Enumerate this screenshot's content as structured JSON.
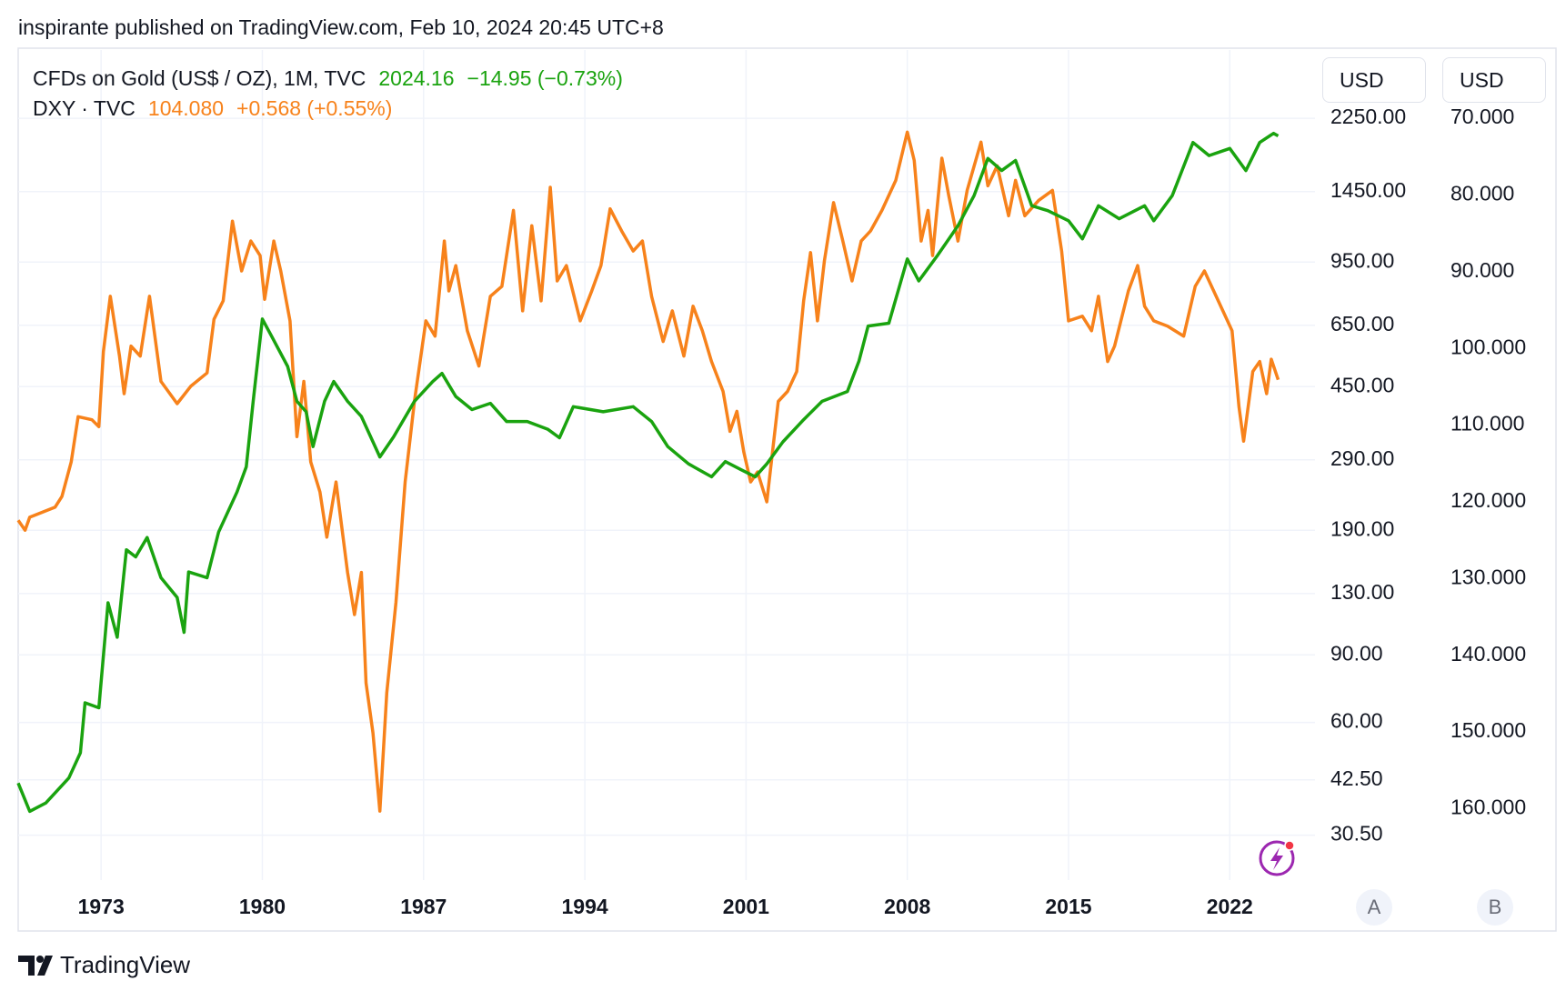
{
  "header": "inspirante published on TradingView.com, Feb 10, 2024 20:45 UTC+8",
  "footer_brand": "TradingView",
  "chart_data": {
    "type": "line",
    "xlim": [
      1969.4,
      2025.7
    ],
    "xticks": [
      1973,
      1980,
      1987,
      1994,
      2001,
      2008,
      2015,
      2022
    ],
    "ylim": [
      23.3,
      3390
    ],
    "log_y": true,
    "yunit": "USD",
    "ybutton": "A",
    "yticks": [
      {
        "value": 2250,
        "label": "2250.00"
      },
      {
        "value": 1450,
        "label": "1450.00"
      },
      {
        "value": 950,
        "label": "950.00"
      },
      {
        "value": 650,
        "label": "650.00"
      },
      {
        "value": 450,
        "label": "450.00"
      },
      {
        "value": 290,
        "label": "290.00"
      },
      {
        "value": 190,
        "label": "190.00"
      },
      {
        "value": 130,
        "label": "130.00"
      },
      {
        "value": 90,
        "label": "90.00"
      },
      {
        "value": 60,
        "label": "60.00"
      },
      {
        "value": 42.5,
        "label": "42.50"
      },
      {
        "value": 30.5,
        "label": "30.50"
      }
    ],
    "y2lim": [
      61.1,
      169.3
    ],
    "y2_inverted": true,
    "y2unit": "USD",
    "y2button": "B",
    "y2ticks": [
      {
        "value": 70,
        "label": "70.000"
      },
      {
        "value": 80,
        "label": "80.000"
      },
      {
        "value": 90,
        "label": "90.000"
      },
      {
        "value": 100,
        "label": "100.000"
      },
      {
        "value": 110,
        "label": "110.000"
      },
      {
        "value": 120,
        "label": "120.000"
      },
      {
        "value": 130,
        "label": "130.000"
      },
      {
        "value": 140,
        "label": "140.000"
      },
      {
        "value": 150,
        "label": "150.000"
      },
      {
        "value": 160,
        "label": "160.000"
      }
    ],
    "grid": true,
    "series": [
      {
        "name": "CFDs on Gold (US$ / OZ), 1M, TVC",
        "last_label": "2024.16",
        "change_label": "−14.95 (−0.73%)",
        "color": "#1aa30f",
        "x": [
          1969.4,
          1969.9,
          1970.6,
          1971.6,
          1972.1,
          1972.3,
          1972.9,
          1973.3,
          1973.7,
          1974.1,
          1974.5,
          1975.0,
          1975.6,
          1976.3,
          1976.6,
          1976.8,
          1977.6,
          1978.1,
          1978.9,
          1979.3,
          1979.6,
          1980.0,
          1980.4,
          1981.1,
          1981.5,
          1981.9,
          1982.2,
          1982.7,
          1983.1,
          1983.7,
          1984.3,
          1985.1,
          1985.7,
          1986.6,
          1987.4,
          1987.8,
          1988.4,
          1989.1,
          1989.9,
          1990.6,
          1991.5,
          1992.4,
          1992.9,
          1993.5,
          1994.8,
          1996.1,
          1996.9,
          1997.6,
          1998.5,
          1999.5,
          2000.1,
          2000.8,
          2001.4,
          2001.9,
          2002.6,
          2003.5,
          2004.3,
          2005.4,
          2005.9,
          2006.3,
          2007.2,
          2008.0,
          2008.5,
          2009.3,
          2010.2,
          2010.9,
          2011.5,
          2012.1,
          2012.7,
          2013.4,
          2014.1,
          2015.0,
          2015.6,
          2016.3,
          2017.2,
          2018.3,
          2018.7,
          2019.5,
          2020.4,
          2021.1,
          2022.0,
          2022.7,
          2023.3,
          2023.9,
          2024.1
        ],
        "values": [
          41.7,
          35.2,
          37.0,
          43.0,
          50.0,
          67.5,
          65.5,
          123,
          100,
          169,
          162,
          182,
          143,
          127,
          103,
          148,
          143,
          188,
          239,
          278,
          412,
          675,
          609,
          508,
          412,
          387,
          314,
          412,
          464,
          412,
          376,
          295,
          333,
          412,
          464,
          487,
          424,
          392,
          407,
          365,
          365,
          348,
          331,
          399,
          387,
          399,
          365,
          314,
          283,
          262,
          287,
          273,
          262,
          283,
          323,
          369,
          412,
          437,
          524,
          647,
          658,
          968,
          848,
          986,
          1181,
          1415,
          1768,
          1645,
          1747,
          1332,
          1293,
          1217,
          1092,
          1332,
          1232,
          1332,
          1217,
          1415,
          1947,
          1800,
          1878,
          1645,
          1947,
          2056,
          2024.16
        ]
      },
      {
        "name": "DXY · TVC",
        "last_label": "104.080",
        "change_label": "+0.568 (+0.55%)",
        "color": "#f7821b",
        "axis": "y2",
        "x": [
          1969.4,
          1969.7,
          1969.9,
          1971.0,
          1971.3,
          1971.7,
          1972.0,
          1972.6,
          1972.9,
          1973.1,
          1973.4,
          1973.8,
          1974.0,
          1974.3,
          1974.7,
          1975.1,
          1975.6,
          1976.3,
          1976.9,
          1977.6,
          1977.9,
          1978.3,
          1978.7,
          1979.1,
          1979.5,
          1979.9,
          1980.1,
          1980.5,
          1980.8,
          1981.2,
          1981.5,
          1981.8,
          1982.1,
          1982.5,
          1982.8,
          1983.2,
          1983.7,
          1984.0,
          1984.3,
          1984.5,
          1984.8,
          1985.1,
          1985.4,
          1985.8,
          1986.2,
          1986.6,
          1987.1,
          1987.5,
          1987.9,
          1988.1,
          1988.4,
          1988.9,
          1989.4,
          1989.9,
          1990.4,
          1990.9,
          1991.3,
          1991.7,
          1992.1,
          1992.5,
          1992.8,
          1993.2,
          1993.8,
          1994.3,
          1994.7,
          1995.1,
          1995.6,
          1996.1,
          1996.5,
          1996.9,
          1997.4,
          1997.8,
          1998.3,
          1998.7,
          1999.1,
          1999.5,
          2000.0,
          2000.3,
          2000.6,
          2000.9,
          2001.2,
          2001.5,
          2001.9,
          2002.4,
          2002.8,
          2003.2,
          2003.5,
          2003.8,
          2004.1,
          2004.4,
          2004.8,
          2005.2,
          2005.6,
          2006.0,
          2006.4,
          2006.9,
          2007.5,
          2008.0,
          2008.3,
          2008.6,
          2008.9,
          2009.1,
          2009.5,
          2009.8,
          2010.2,
          2010.6,
          2011.2,
          2011.5,
          2011.9,
          2012.4,
          2012.7,
          2013.1,
          2013.7,
          2014.3,
          2014.7,
          2015.0,
          2015.6,
          2016.0,
          2016.3,
          2016.7,
          2017.0,
          2017.6,
          2018.0,
          2018.3,
          2018.7,
          2019.3,
          2020.0,
          2020.5,
          2020.9,
          2021.3,
          2021.7,
          2022.1,
          2022.4,
          2022.6,
          2023.0,
          2023.3,
          2023.6,
          2023.8,
          2024.1
        ],
        "values": [
          122.4,
          123.7,
          122.0,
          120.7,
          119.3,
          114.8,
          108.9,
          109.3,
          110.2,
          100.4,
          93.2,
          101.0,
          105.9,
          99.7,
          101.0,
          93.2,
          104.3,
          107.2,
          104.9,
          103.2,
          96.2,
          93.8,
          83.4,
          89.9,
          86.0,
          87.9,
          93.6,
          86.0,
          89.9,
          96.4,
          111.5,
          104.3,
          114.8,
          118.7,
          124.6,
          117.4,
          129.2,
          134.7,
          129.2,
          143.6,
          150.1,
          160.3,
          144.9,
          133.1,
          117.4,
          106.9,
          96.4,
          98.4,
          86.0,
          92.5,
          89.2,
          97.7,
          102.3,
          93.2,
          91.9,
          82.0,
          95.1,
          84.0,
          93.8,
          79.0,
          91.2,
          89.2,
          96.4,
          92.5,
          89.2,
          81.8,
          84.7,
          87.3,
          86.0,
          93.2,
          99.1,
          95.1,
          101.0,
          94.5,
          97.7,
          101.7,
          105.6,
          110.8,
          108.2,
          113.5,
          117.4,
          116.1,
          120.0,
          106.9,
          105.6,
          103.0,
          93.8,
          87.5,
          96.4,
          88.6,
          81.0,
          86.0,
          91.2,
          86.0,
          84.7,
          82.0,
          78.1,
          71.8,
          75.5,
          86.0,
          82.0,
          87.9,
          75.2,
          80.1,
          86.0,
          79.4,
          73.1,
          78.8,
          76.2,
          82.7,
          78.1,
          82.7,
          80.7,
          79.4,
          87.3,
          96.4,
          95.8,
          97.7,
          93.2,
          101.7,
          99.7,
          92.5,
          89.2,
          94.5,
          96.4,
          97.1,
          98.4,
          91.9,
          89.9,
          92.5,
          95.1,
          97.7,
          107.6,
          112.1,
          103.0,
          101.7,
          105.9,
          101.4,
          104.08
        ]
      }
    ]
  }
}
